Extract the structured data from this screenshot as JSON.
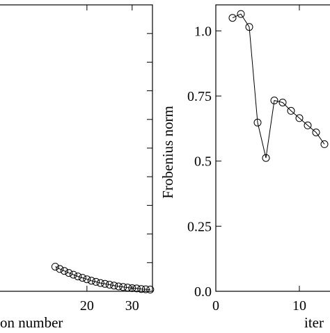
{
  "chart_data": [
    {
      "type": "line",
      "xlabel": "on number",
      "ylabel": "",
      "xlim": [
        0,
        34.5
      ],
      "ylim": [
        0,
        1
      ],
      "x_ticks": [
        20,
        30
      ],
      "x_tick_labels": [
        "20",
        "30"
      ],
      "grid": false,
      "series": [
        {
          "x": [
            13,
            14,
            15,
            16,
            17,
            18,
            19,
            20,
            21,
            22,
            23,
            24,
            25,
            26,
            27,
            28,
            29,
            30,
            31,
            32,
            33,
            34
          ],
          "y": [
            0.086,
            0.078,
            0.071,
            0.064,
            0.058,
            0.052,
            0.047,
            0.042,
            0.037,
            0.033,
            0.029,
            0.026,
            0.023,
            0.02,
            0.017,
            0.015,
            0.013,
            0.011,
            0.01,
            0.008,
            0.007,
            0.006
          ]
        }
      ]
    },
    {
      "type": "line",
      "xlabel": "iter",
      "ylabel": "Frobenius norm",
      "xlim": [
        0,
        15
      ],
      "ylim": [
        0,
        1.1
      ],
      "x_ticks": [
        0,
        10
      ],
      "x_tick_labels": [
        "0",
        "10"
      ],
      "y_ticks": [
        0,
        0.25,
        0.5,
        0.75,
        1.0
      ],
      "y_tick_labels": [
        "0.0",
        "0.25",
        "0.5",
        "0.75",
        "1.0"
      ],
      "grid": false,
      "series": [
        {
          "x": [
            2,
            3,
            4,
            5,
            6,
            7,
            8,
            9,
            10,
            11,
            12,
            13
          ],
          "y": [
            1.05,
            1.065,
            1.015,
            0.648,
            0.512,
            0.733,
            0.725,
            0.693,
            0.665,
            0.637,
            0.61,
            0.565
          ]
        }
      ]
    }
  ]
}
